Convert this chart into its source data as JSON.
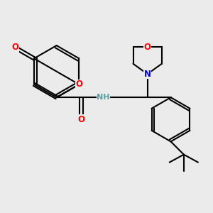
{
  "bg_color": "#ebebeb",
  "bond_color": "#000000",
  "atom_colors": {
    "O": "#ff0000",
    "N": "#0000cc",
    "H": "#5a9ea0"
  },
  "fig_size": [
    3.0,
    3.0
  ],
  "dpi": 100
}
